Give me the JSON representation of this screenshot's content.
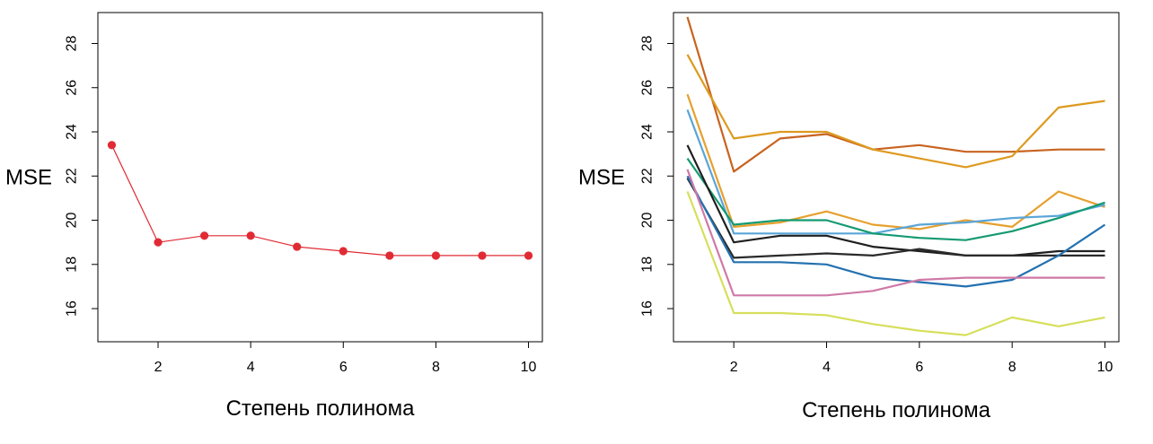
{
  "chart_data": [
    {
      "type": "line",
      "xlabel": "Степень полинома",
      "ylabel": "MSE",
      "xlim": [
        0.7,
        10.3
      ],
      "ylim": [
        14.5,
        29.4
      ],
      "xticks": [
        2,
        4,
        6,
        8,
        10
      ],
      "yticks": [
        16,
        18,
        20,
        22,
        24,
        26,
        28
      ],
      "markers": true,
      "series": [
        {
          "color": "#e02b35",
          "x": [
            1,
            2,
            3,
            4,
            5,
            6,
            7,
            8,
            9,
            10
          ],
          "y": [
            23.4,
            19.0,
            19.3,
            19.3,
            18.8,
            18.6,
            18.4,
            18.4,
            18.4,
            18.4
          ]
        }
      ]
    },
    {
      "type": "line",
      "xlabel": "Степень полинома",
      "ylabel": "MSE",
      "xlim": [
        0.7,
        10.3
      ],
      "ylim": [
        14.5,
        29.4
      ],
      "xticks": [
        2,
        4,
        6,
        8,
        10
      ],
      "yticks": [
        16,
        18,
        20,
        22,
        24,
        26,
        28
      ],
      "markers": false,
      "series": [
        {
          "color": "#c8631f",
          "x": [
            1,
            2,
            3,
            4,
            5,
            6,
            7,
            8,
            9,
            10
          ],
          "y": [
            29.2,
            22.2,
            23.7,
            23.9,
            23.2,
            23.4,
            23.1,
            23.1,
            23.2,
            23.2
          ]
        },
        {
          "color": "#dd9a1f",
          "x": [
            1,
            2,
            3,
            4,
            5,
            6,
            7,
            8,
            9,
            10
          ],
          "y": [
            27.5,
            23.7,
            24.0,
            24.0,
            23.2,
            22.8,
            22.4,
            22.9,
            25.1,
            25.4
          ]
        },
        {
          "color": "#e6a02e",
          "x": [
            1,
            2,
            3,
            4,
            5,
            6,
            7,
            8,
            9,
            10
          ],
          "y": [
            25.7,
            19.7,
            19.9,
            20.4,
            19.8,
            19.6,
            20.0,
            19.7,
            21.3,
            20.6
          ]
        },
        {
          "color": "#5aa5d8",
          "x": [
            1,
            2,
            3,
            4,
            5,
            6,
            7,
            8,
            9,
            10
          ],
          "y": [
            25.0,
            19.4,
            19.4,
            19.4,
            19.4,
            19.8,
            19.9,
            20.1,
            20.2,
            20.7
          ]
        },
        {
          "color": "#149a72",
          "x": [
            1,
            2,
            3,
            4,
            5,
            6,
            7,
            8,
            9,
            10
          ],
          "y": [
            22.8,
            19.8,
            20.0,
            20.0,
            19.4,
            19.2,
            19.1,
            19.5,
            20.1,
            20.8
          ]
        },
        {
          "color": "#1f1f1f",
          "x": [
            1,
            2,
            3,
            4,
            5,
            6,
            7,
            8,
            9,
            10
          ],
          "y": [
            23.4,
            19.0,
            19.3,
            19.3,
            18.8,
            18.6,
            18.4,
            18.4,
            18.6,
            18.6
          ]
        },
        {
          "color": "#2a2a2a",
          "x": [
            1,
            2,
            3,
            4,
            5,
            6,
            7,
            8,
            9,
            10
          ],
          "y": [
            21.9,
            18.3,
            18.4,
            18.5,
            18.4,
            18.7,
            18.4,
            18.4,
            18.4,
            18.4
          ]
        },
        {
          "color": "#2471b0",
          "x": [
            1,
            2,
            3,
            4,
            5,
            6,
            7,
            8,
            9,
            10
          ],
          "y": [
            22.0,
            18.1,
            18.1,
            18.0,
            17.4,
            17.2,
            17.0,
            17.3,
            18.4,
            19.8
          ]
        },
        {
          "color": "#cf79a6",
          "x": [
            1,
            2,
            3,
            4,
            5,
            6,
            7,
            8,
            9,
            10
          ],
          "y": [
            22.3,
            16.6,
            16.6,
            16.6,
            16.8,
            17.3,
            17.4,
            17.4,
            17.4,
            17.4
          ]
        },
        {
          "color": "#d6df5b",
          "x": [
            1,
            2,
            3,
            4,
            5,
            6,
            7,
            8,
            9,
            10
          ],
          "y": [
            21.3,
            15.8,
            15.8,
            15.7,
            15.3,
            15.0,
            14.8,
            15.6,
            15.2,
            15.6
          ]
        }
      ]
    }
  ]
}
